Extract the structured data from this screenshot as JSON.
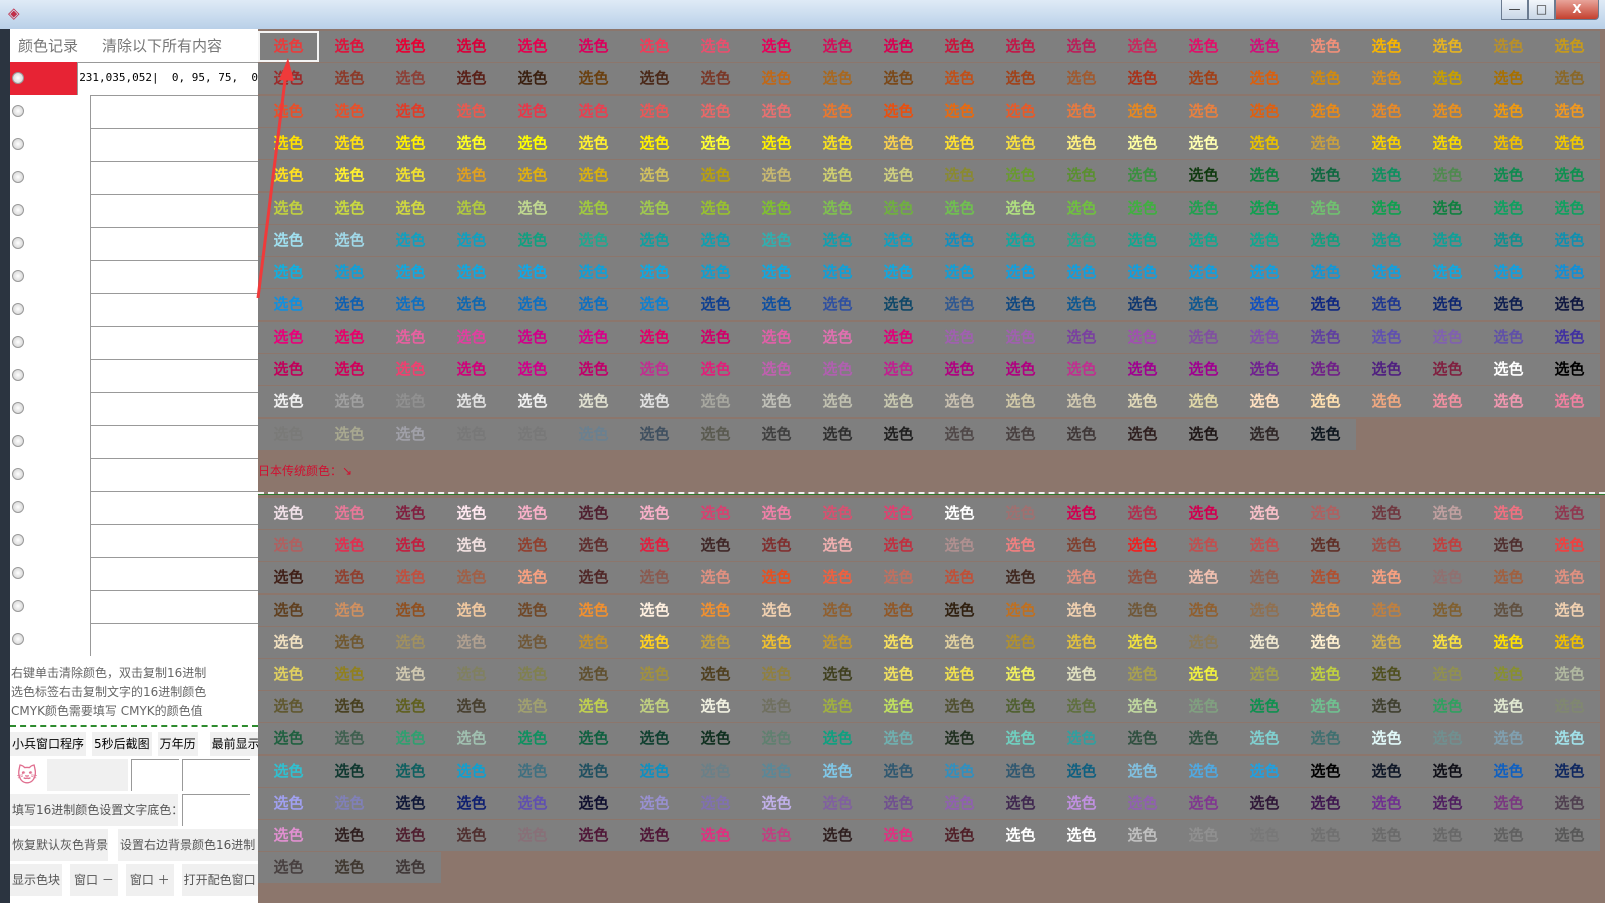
{
  "window": {
    "minimize": "—",
    "maximize": "□",
    "close": "X"
  },
  "left": {
    "header_record": "颜色记录",
    "header_clear": "清除以下所有内容",
    "records": [
      {
        "swatch": "#e72334",
        "value": "231,035,052|  0, 95, 75,  0"
      },
      {
        "swatch": "",
        "value": ""
      },
      {
        "swatch": "",
        "value": ""
      },
      {
        "swatch": "",
        "value": ""
      },
      {
        "swatch": "",
        "value": ""
      },
      {
        "swatch": "",
        "value": ""
      },
      {
        "swatch": "",
        "value": ""
      },
      {
        "swatch": "",
        "value": ""
      },
      {
        "swatch": "",
        "value": ""
      },
      {
        "swatch": "",
        "value": ""
      },
      {
        "swatch": "",
        "value": ""
      },
      {
        "swatch": "",
        "value": ""
      },
      {
        "swatch": "",
        "value": ""
      },
      {
        "swatch": "",
        "value": ""
      },
      {
        "swatch": "",
        "value": ""
      },
      {
        "swatch": "",
        "value": ""
      },
      {
        "swatch": "",
        "value": ""
      },
      {
        "swatch": "",
        "value": ""
      }
    ],
    "hints": [
      "右键单击清除颜色，双击复制16进制",
      "选色标签右击复制文字的16进制颜色",
      "CMYK颜色需要填写 CMYK的颜色值"
    ],
    "buttons_row1": [
      "小兵窗口程序",
      "5秒后截图",
      "万年历",
      "最前显示"
    ],
    "bg_label": "填写16进制颜色设置文字底色：",
    "restore_bg": "恢复默认灰色背景",
    "set_bg": "设置右边背景颜色16进制",
    "buttons_row4": [
      "显示色块",
      "窗口 －",
      "窗口 ＋",
      "打开配色窗口"
    ]
  },
  "main": {
    "cell_label": "选色",
    "japanese_label": "日本传统颜色：↘",
    "colors": {
      "grid_bg": "#7f7f7f",
      "panel_bg": "#8c766c",
      "selected_border": "#f4f4f4"
    },
    "top_rows": [
      [
        "#e83c3c",
        "#dc143c",
        "#e60033",
        "#d7003a",
        "#e4004f",
        "#d9005c",
        "#f03c5a",
        "#e8506e",
        "#e6005a",
        "#d0105a",
        "#d70051",
        "#c8143c",
        "#c01848",
        "#b8205a",
        "#c8285e",
        "#e0106a",
        "#d0107a",
        "#f0907a",
        "#f8b500",
        "#e6b422",
        "#b8902a",
        "#c89b1a"
      ],
      [
        "#9a2a2a",
        "#8c3a2a",
        "#8c4038",
        "#5a2018",
        "#3a2010",
        "#6a4010",
        "#4a2818",
        "#7a3828",
        "#c06818",
        "#a86820",
        "#7a4818",
        "#c0501a",
        "#a0421a",
        "#a05a30",
        "#a8321a",
        "#a04018",
        "#d86010",
        "#d08a10",
        "#d89020",
        "#c8a000",
        "#a87000",
        "#8a6828"
      ],
      [
        "#e8502a",
        "#e8502a",
        "#e03c28",
        "#e85a50",
        "#e8384a",
        "#e84050",
        "#e85858",
        "#e86868",
        "#e87070",
        "#e87830",
        "#e85010",
        "#e86a10",
        "#e85a28",
        "#e87a40",
        "#e88820",
        "#e88040",
        "#e06010",
        "#e88a18",
        "#e88a28",
        "#e89020",
        "#f09a10",
        "#f09820"
      ],
      [
        "#ffe000",
        "#ffe010",
        "#fff000",
        "#ffff20",
        "#ffff00",
        "#fff030",
        "#fff000",
        "#ffff30",
        "#fff000",
        "#f8e020",
        "#f8d050",
        "#ffe030",
        "#f8e040",
        "#fff080",
        "#ffffa0",
        "#ffffb0",
        "#e8c000",
        "#c8a040",
        "#f8d000",
        "#f8d800",
        "#f0c000",
        "#f0c800"
      ],
      [
        "#ffe020",
        "#fff030",
        "#f0e030",
        "#e0a020",
        "#e0b010",
        "#d8b010",
        "#d0c060",
        "#b8a010",
        "#c8b870",
        "#d0d070",
        "#d0d080",
        "#8a8a30",
        "#6a9a30",
        "#5a9030",
        "#3a9040",
        "#103a10",
        "#108040",
        "#106840",
        "#109060",
        "#508a50",
        "#108a50",
        "#109050"
      ],
      [
        "#c0d040",
        "#c8d840",
        "#d0d840",
        "#b0c840",
        "#c0d890",
        "#a0c840",
        "#a0c850",
        "#98c030",
        "#80c030",
        "#80c050",
        "#70b040",
        "#70c050",
        "#b0e080",
        "#70c040",
        "#40b040",
        "#20a050",
        "#10a050",
        "#70c070",
        "#10a050",
        "#108040",
        "#10a060",
        "#10a060"
      ],
      [
        "#a0e0f0",
        "#a0d8e8",
        "#10a0c0",
        "#10a0c0",
        "#10a080",
        "#20a890",
        "#10a0a0",
        "#10a0b0",
        "#30b0b0",
        "#10a0b0",
        "#10a0c0",
        "#1090c0",
        "#10a8a0",
        "#20a890",
        "#10a890",
        "#10a890",
        "#10a890",
        "#10a080",
        "#10a090",
        "#10a098",
        "#109090",
        "#1090b0"
      ],
      [
        "#10b0e0",
        "#10a0d8",
        "#10a8e0",
        "#10a8e0",
        "#10a8e8",
        "#10a0d8",
        "#10a8e0",
        "#10a0d0",
        "#10a8e0",
        "#10a0d8",
        "#10a8e0",
        "#10a0d8",
        "#10a0e0",
        "#10a0e0",
        "#10a0e0",
        "#10a0e0",
        "#10a0e0",
        "#1098d8",
        "#10a0e0",
        "#10a8e0",
        "#10a0e0",
        "#1090d8"
      ],
      [
        "#1090e0",
        "#1060b0",
        "#1070c0",
        "#1068b0",
        "#1070c0",
        "#1070c0",
        "#1080d0",
        "#104090",
        "#1050a0",
        "#3050a0",
        "#104868",
        "#305890",
        "#104880",
        "#105890",
        "#103870",
        "#105890",
        "#1050c0",
        "#102880",
        "#203890",
        "#102870",
        "#102050",
        "#101840"
      ],
      [
        "#e8007a",
        "#e8006a",
        "#e860a0",
        "#e040a0",
        "#d0008a",
        "#d8008a",
        "#e0006a",
        "#d0006a",
        "#e060a8",
        "#e070b0",
        "#e0007a",
        "#a060b0",
        "#a060b0",
        "#7a40a0",
        "#a050b0",
        "#8050a0",
        "#8050a8",
        "#6040a0",
        "#6050b0",
        "#8060b0",
        "#6050a8",
        "#4030a0"
      ],
      [
        "#c0005a",
        "#d0005a",
        "#f04070",
        "#d0007a",
        "#d0008a",
        "#c0006a",
        "#c03090",
        "#e0207a",
        "#c060b0",
        "#b060b0",
        "#c02090",
        "#b00080",
        "#b00080",
        "#c03090",
        "#a00090",
        "#a00090",
        "#702090",
        "#702088",
        "#502080",
        "#802040",
        "#ffffff",
        "#000000"
      ],
      [
        "#f0f0f0",
        "#a0a0a0",
        "#909090",
        "#e0e0e0",
        "#f0f0f0",
        "#e0e0d0",
        "#e0e0e0",
        "#a8a8a0",
        "#c0c0b8",
        "#c0c0b0",
        "#c8c8b0",
        "#c8c0b0",
        "#d0c8a8",
        "#d0c8b0",
        "#e0d8b8",
        "#e0d8a8",
        "#ffe0c0",
        "#ffe0b0",
        "#f0a880",
        "#f090a0",
        "#f098b0",
        "#f080a0"
      ],
      [
        "#7a7a78",
        "#a8a890",
        "#a0a0a8",
        "#787878",
        "#787878",
        "#6a8090",
        "#405060",
        "#5a5a50",
        "#404040",
        "#303030",
        "#202020",
        "#504848",
        "#484040",
        "#403838",
        "#302020",
        "#201818",
        "#302828",
        "#101820"
      ]
    ],
    "japanese_rows": [
      [
        "#f0e0e8",
        "#e87898",
        "#802040",
        "#ffe8f0",
        "#f8b0c8",
        "#502030",
        "#f8b0c8",
        "#d84070",
        "#f080a8",
        "#d85070",
        "#e04070",
        "#ffffff",
        "#a07070",
        "#d00050",
        "#b03050",
        "#d00050",
        "#f8c0c8",
        "#b06060",
        "#703840",
        "#c0a0a0",
        "#f07080",
        "#903850"
      ],
      [
        "#b06060",
        "#e03050",
        "#c02040",
        "#f0e0e0",
        "#904030",
        "#603030",
        "#e02040",
        "#402828",
        "#803030",
        "#f0b0b0",
        "#c03040",
        "#b09090",
        "#f08080",
        "#804030",
        "#f02020",
        "#c05050",
        "#c05050",
        "#603028",
        "#a05048",
        "#c04040",
        "#503030",
        "#f04040"
      ],
      [
        "#402018",
        "#904030",
        "#c05040",
        "#a06048",
        "#f8a080",
        "#502828",
        "#8a5a50",
        "#e09080",
        "#e85020",
        "#f06040",
        "#c07060",
        "#c05038",
        "#402820",
        "#e09080",
        "#905040",
        "#f0c0b0",
        "#906050",
        "#b05030",
        "#f8a080",
        "#907070",
        "#a06040",
        "#e09080"
      ],
      [
        "#604020",
        "#d09060",
        "#905020",
        "#f0c8a0",
        "#704828",
        "#f09030",
        "#fff0e0",
        "#f09030",
        "#f0d0b0",
        "#906030",
        "#905828",
        "#302010",
        "#c07020",
        "#f0d0b0",
        "#705838",
        "#906030",
        "#907050",
        "#e0a050",
        "#c08040",
        "#806030",
        "#605040",
        "#f0d0b0"
      ],
      [
        "#f0e0c0",
        "#705830",
        "#a09060",
        "#b0a090",
        "#705838",
        "#c09030",
        "#ffd020",
        "#c0a040",
        "#f0c030",
        "#c09830",
        "#f8e060",
        "#e0d0a0",
        "#b09030",
        "#e0c040",
        "#f0e040",
        "#8a7a58",
        "#f0e8d0",
        "#fff0d0",
        "#d0b050",
        "#f8e040",
        "#ffe000",
        "#f0c000"
      ],
      [
        "#e0d060",
        "#908020",
        "#d0c8b0",
        "#808060",
        "#808050",
        "#605030",
        "#a09040",
        "#504020",
        "#908040",
        "#404020",
        "#f0e060",
        "#f0e050",
        "#f0f060",
        "#e0e0c0",
        "#a8a050",
        "#f0f040",
        "#a0a050",
        "#c0d040",
        "#505020",
        "#909050",
        "#889030",
        "#b0b8a0"
      ],
      [
        "#605830",
        "#484020",
        "#606020",
        "#484030",
        "#a0a070",
        "#c0d050",
        "#c0d080",
        "#f0f0e0",
        "#707060",
        "#a0b040",
        "#c0e060",
        "#505030",
        "#506030",
        "#607040",
        "#c0d8a0",
        "#80a080",
        "#109050",
        "#70c090",
        "#404030",
        "#30a060",
        "#e0e8d0",
        "#808870"
      ],
      [
        "#206040",
        "#406050",
        "#30a070",
        "#a0c0b0",
        "#109060",
        "#106040",
        "#104030",
        "#103020",
        "#608070",
        "#10a080",
        "#70b0b0",
        "#203020",
        "#70d0c0",
        "#30a0a0",
        "#305040",
        "#305040",
        "#80d0d0",
        "#407070",
        "#e0f8f8",
        "#709090",
        "#80a0b0",
        "#a0e0e8"
      ],
      [
        "#30c0d0",
        "#103830",
        "#106060",
        "#10a0d0",
        "#407080",
        "#205060",
        "#1090c0",
        "#6a8088",
        "#5a8898",
        "#80c8e8",
        "#305870",
        "#3090c0",
        "#305870",
        "#106080",
        "#80c0e0",
        "#50a8e0",
        "#20a0e0",
        "#000000",
        "#101828",
        "#101018",
        "#1060c0",
        "#102860"
      ],
      [
        "#a0a0f0",
        "#8080b8",
        "#101838",
        "#102070",
        "#6050b0",
        "#101030",
        "#9890d0",
        "#8070b0",
        "#c0b0e8",
        "#8060a0",
        "#705090",
        "#9060b0",
        "#402850",
        "#c090e0",
        "#9060b0",
        "#803890",
        "#301838",
        "#401850",
        "#703090",
        "#502060",
        "#7a3880",
        "#504050"
      ],
      [
        "#e090d0",
        "#302020",
        "#502030",
        "#503030",
        "#887078",
        "#501838",
        "#501838",
        "#e03080",
        "#c04080",
        "#302020",
        "#e03080",
        "#502028",
        "#ffffff",
        "#ffffff",
        "#c0c0c0",
        "#909090",
        "#787878",
        "#707070",
        "#6a6a6a",
        "#686868",
        "#606060",
        "#585858"
      ],
      [
        "#484040",
        "#403830",
        "#403838"
      ]
    ]
  }
}
